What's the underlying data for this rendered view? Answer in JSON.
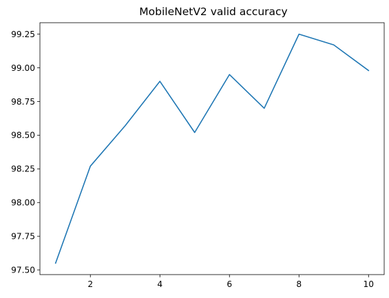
{
  "chart_data": {
    "type": "line",
    "title": "MobileNetV2 valid accuracy",
    "xlabel": "",
    "ylabel": "",
    "x": [
      1,
      2,
      3,
      4,
      5,
      6,
      7,
      8,
      9,
      10
    ],
    "series": [
      {
        "values": [
          97.55,
          98.27,
          98.57,
          98.9,
          98.52,
          98.95,
          98.7,
          99.25,
          99.17,
          98.98
        ],
        "color": "#1f77b4"
      }
    ],
    "xticks": [
      2,
      4,
      6,
      8,
      10
    ],
    "xtick_labels": [
      "2",
      "4",
      "6",
      "8",
      "10"
    ],
    "yticks": [
      97.5,
      97.75,
      98.0,
      98.25,
      98.5,
      98.75,
      99.0,
      99.25
    ],
    "ytick_labels": [
      "97.50",
      "97.75",
      "98.00",
      "98.25",
      "98.50",
      "98.75",
      "99.00",
      "99.25"
    ],
    "xlim": [
      0.55,
      10.45
    ],
    "ylim": [
      97.465,
      99.335
    ],
    "grid": false,
    "legend": "none"
  }
}
